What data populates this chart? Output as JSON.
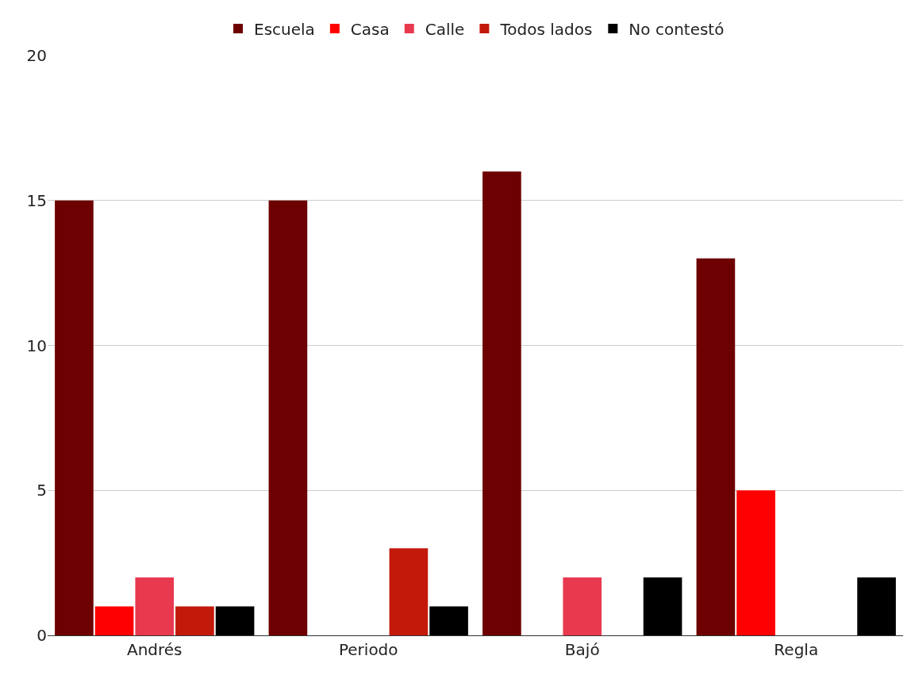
{
  "chart_data": {
    "type": "bar",
    "categories": [
      "Andrés",
      "Periodo",
      "Bajó",
      "Regla"
    ],
    "series": [
      {
        "name": "Escuela",
        "color": "#6d0000",
        "values": [
          15,
          15,
          16,
          13
        ]
      },
      {
        "name": "Casa",
        "color": "#ff0000",
        "values": [
          1,
          0,
          0,
          5
        ]
      },
      {
        "name": "Calle",
        "color": "#e8394f",
        "values": [
          2,
          0,
          2,
          0
        ]
      },
      {
        "name": "Todos lados",
        "color": "#c2190b",
        "values": [
          1,
          3,
          0,
          0
        ]
      },
      {
        "name": "No contestó",
        "color": "#000000",
        "values": [
          1,
          1,
          2,
          2
        ]
      }
    ],
    "ylim": [
      0,
      20
    ],
    "yticks": [
      0,
      5,
      10,
      15,
      20
    ],
    "grid": "y",
    "legend": "top"
  }
}
